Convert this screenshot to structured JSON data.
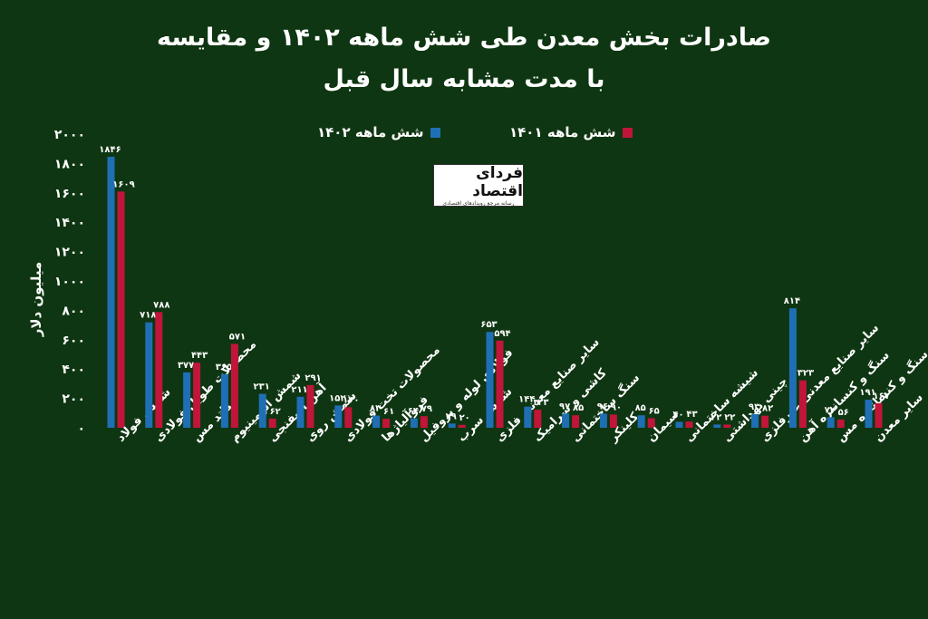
{
  "chart_data": {
    "type": "bar",
    "title": "صادرات بخش معدن طی شش ماهه ۱۴۰۲ و مقایسه",
    "subtitle": "با مدت مشابه سال قبل",
    "ylabel": "میلیون دلار",
    "ylim": [
      0,
      2000
    ],
    "yticks": [
      "۰",
      "۲۰۰",
      "۴۰۰",
      "۶۰۰",
      "۸۰۰",
      "۱۰۰۰",
      "۱۲۰۰",
      "۱۴۰۰",
      "۱۶۰۰",
      "۱۸۰۰",
      "۲۰۰۰"
    ],
    "grid": false,
    "legend_position": "top-center",
    "categories": [
      "شمش فولاد",
      "محصولات طویل فولادی",
      "کاتد مس",
      "شمش آلومینیوم",
      "آهن اسفنجی",
      "شمش روی",
      "محصولات تخت فولادی",
      "فروآلیاژها",
      "فولادی لوله و پروفیل",
      "شمش سرب",
      "سایر صنایع معدنی فلزی",
      "کاشی و سرامیک",
      "سنگ ساختمانی",
      "کلینکر",
      "سیمان",
      "شیشه ساختمانی",
      "چینی بهداشتی",
      "سایر صنایع معدنی غیرفلزی",
      "سنگ و کنسانتره آهن",
      "سنگ و کنسانتره مس",
      "سایر معدن"
    ],
    "series": [
      {
        "name": "شش ماهه ۱۴۰۲",
        "color": "#1f6fb5",
        "values": [
          1846,
          718,
          377,
          365,
          231,
          211,
          152,
          83,
          64,
          29,
          653,
          144,
          97,
          96,
          85,
          40,
          22,
          93,
          814,
          72,
          191
        ],
        "labels": [
          "۱۸۴۶",
          "۷۱۸",
          "۳۷۷",
          "۳۶۵",
          "۲۳۱",
          "۲۱۱",
          "۱۵۲",
          "۸۳",
          "۶۴",
          "۲۹",
          "۶۵۳",
          "۱۴۴",
          "۹۷",
          "۹۶",
          "۸۵",
          "۴۰",
          "۲۲",
          "۹۳",
          "۸۱۴",
          "۷۲",
          "۱۹۱"
        ]
      },
      {
        "name": "شش ماهه ۱۴۰۱",
        "color": "#c1153a",
        "values": [
          1609,
          788,
          443,
          571,
          62,
          291,
          140,
          61,
          79,
          20,
          594,
          123,
          85,
          90,
          65,
          43,
          22,
          82,
          323,
          56,
          167
        ],
        "labels": [
          "۱۶۰۹",
          "۷۸۸",
          "۴۴۳",
          "۵۷۱",
          "۶۲",
          "۲۹۱",
          "۱۴۰",
          "۶۱",
          "۷۹",
          "۲۰",
          "۵۹۴",
          "۱۲۳",
          "۸۵",
          "۹۰",
          "۶۵",
          "۴۳",
          "۲۲",
          "۸۲",
          "۳۲۳",
          "۵۶",
          "۱۶۷"
        ]
      }
    ]
  },
  "logo": {
    "text": "فردای اقتصاد",
    "subtext": "رسانه مرجع رویدادهای اقتصادی"
  }
}
